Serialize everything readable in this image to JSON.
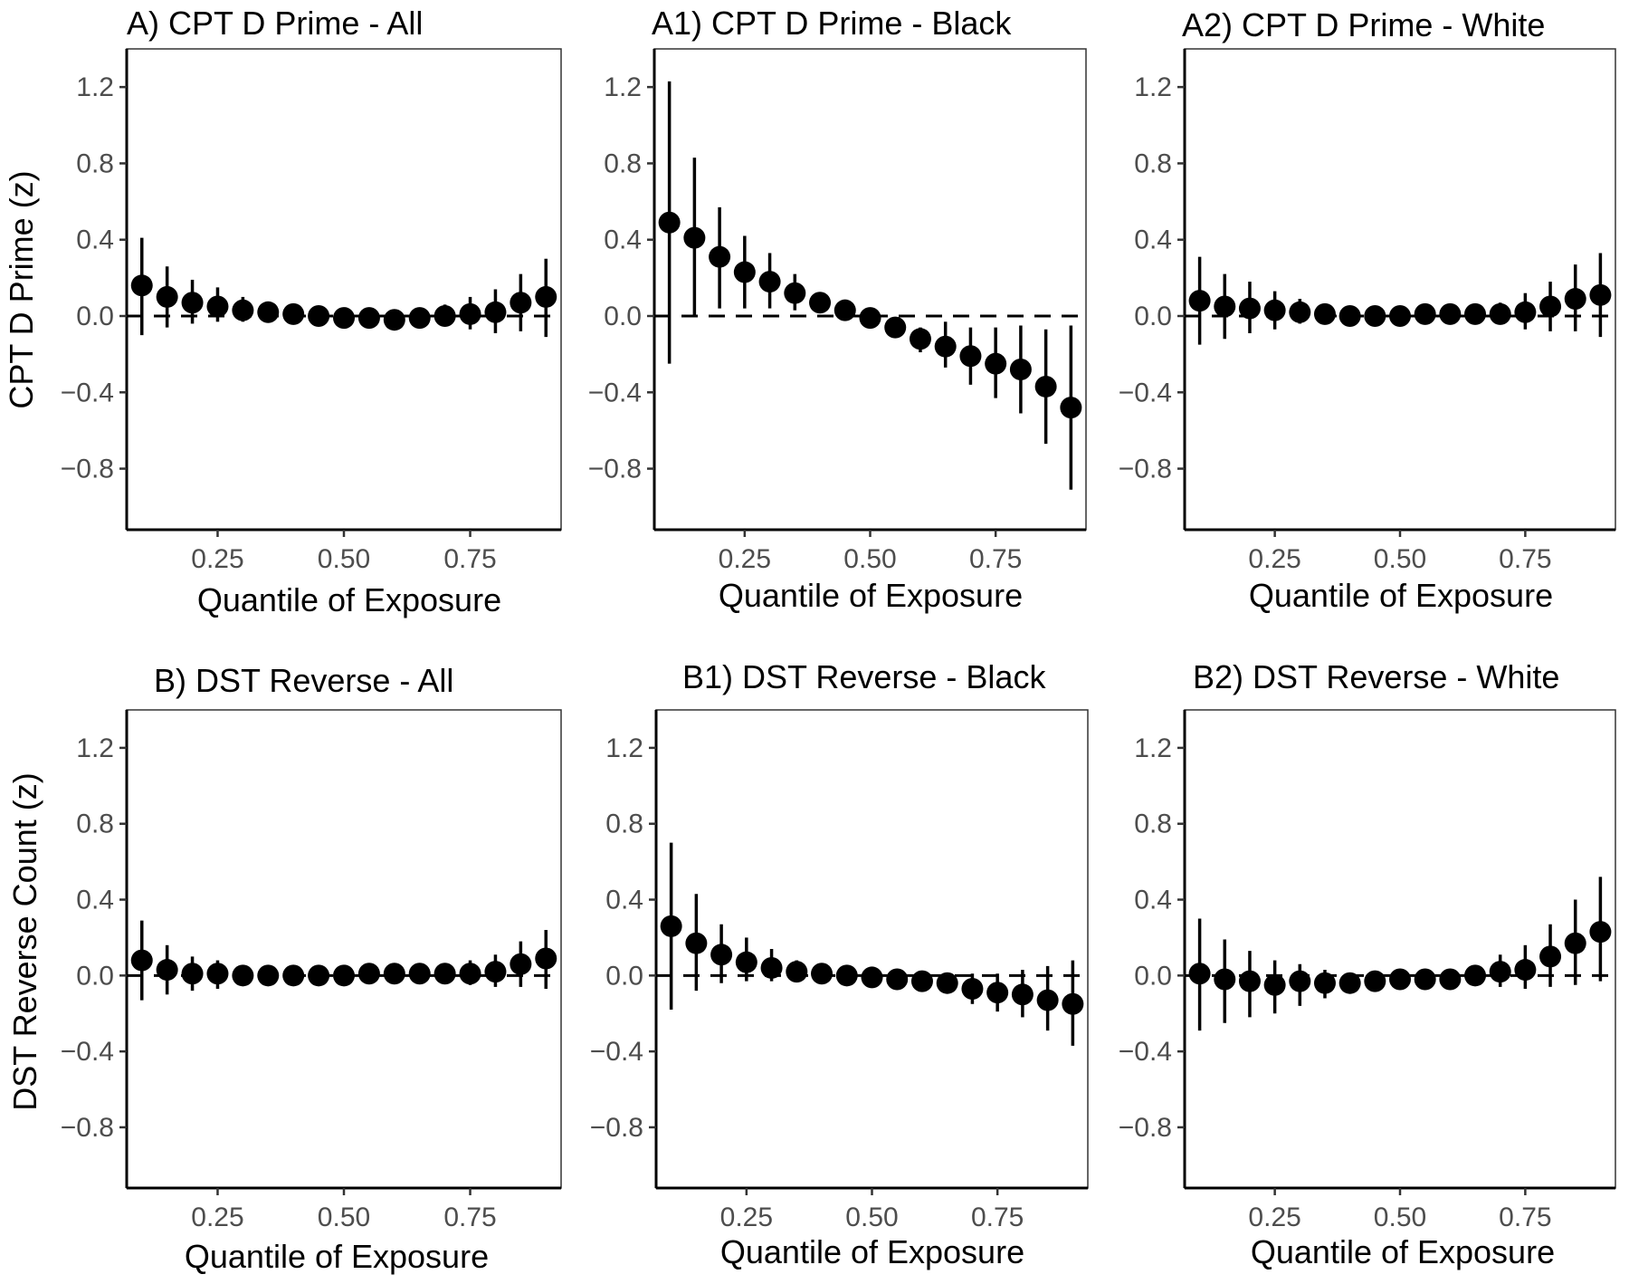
{
  "chart_data": [
    {
      "type": "scatter",
      "title": "A) CPT D Prime - All",
      "xlabel": "Quantile of Exposure",
      "ylabel": "CPT D Prime (z)",
      "xticks": [
        "0.25",
        "0.50",
        "0.75"
      ],
      "yticks": [
        "1.2",
        "0.8",
        "0.4",
        "0.0",
        "−0.4",
        "−0.8"
      ],
      "xlim": [
        0.07,
        0.93
      ],
      "ylim": [
        -1.12,
        1.4
      ],
      "reference_line": 0,
      "x": [
        0.1,
        0.15,
        0.2,
        0.25,
        0.3,
        0.35,
        0.4,
        0.45,
        0.5,
        0.55,
        0.6,
        0.65,
        0.7,
        0.75,
        0.8,
        0.85,
        0.9
      ],
      "y": [
        0.16,
        0.1,
        0.07,
        0.05,
        0.03,
        0.02,
        0.01,
        0.0,
        -0.01,
        -0.01,
        -0.02,
        -0.01,
        0.0,
        0.01,
        0.02,
        0.07,
        0.1
      ],
      "lower": [
        -0.1,
        -0.06,
        -0.04,
        -0.03,
        -0.03,
        0.01,
        0.0,
        0.0,
        -0.01,
        -0.01,
        -0.02,
        -0.02,
        -0.05,
        -0.07,
        -0.09,
        -0.08,
        -0.11
      ],
      "upper": [
        0.41,
        0.26,
        0.19,
        0.15,
        0.1,
        0.03,
        0.02,
        0.01,
        0.0,
        0.0,
        -0.01,
        0.0,
        0.06,
        0.1,
        0.14,
        0.22,
        0.3
      ]
    },
    {
      "type": "scatter",
      "title": "A1) CPT D Prime - Black",
      "xlabel": "Quantile of Exposure",
      "ylabel": "",
      "xticks": [
        "0.25",
        "0.50",
        "0.75"
      ],
      "yticks": [
        "1.2",
        "0.8",
        "0.4",
        "0.0",
        "−0.4",
        "−0.8"
      ],
      "xlim": [
        0.07,
        0.93
      ],
      "ylim": [
        -1.12,
        1.4
      ],
      "reference_line": 0,
      "x": [
        0.1,
        0.15,
        0.2,
        0.25,
        0.3,
        0.35,
        0.4,
        0.45,
        0.5,
        0.55,
        0.6,
        0.65,
        0.7,
        0.75,
        0.8,
        0.85,
        0.9
      ],
      "y": [
        0.49,
        0.41,
        0.31,
        0.23,
        0.18,
        0.12,
        0.07,
        0.03,
        -0.01,
        -0.06,
        -0.12,
        -0.16,
        -0.21,
        -0.25,
        -0.28,
        -0.37,
        -0.48
      ],
      "lower": [
        -0.25,
        0.0,
        0.04,
        0.04,
        0.04,
        0.03,
        0.05,
        0.02,
        -0.01,
        -0.06,
        -0.19,
        -0.27,
        -0.36,
        -0.43,
        -0.51,
        -0.67,
        -0.91
      ],
      "upper": [
        1.23,
        0.83,
        0.57,
        0.42,
        0.33,
        0.22,
        0.11,
        0.03,
        -0.01,
        -0.06,
        -0.06,
        -0.03,
        -0.06,
        -0.06,
        -0.05,
        -0.07,
        -0.05
      ]
    },
    {
      "type": "scatter",
      "title": "A2) CPT D Prime - White",
      "xlabel": "Quantile of Exposure",
      "ylabel": "",
      "xticks": [
        "0.25",
        "0.50",
        "0.75"
      ],
      "yticks": [
        "1.2",
        "0.8",
        "0.4",
        "0.0",
        "−0.4",
        "−0.8"
      ],
      "xlim": [
        0.07,
        0.93
      ],
      "ylim": [
        -1.12,
        1.4
      ],
      "reference_line": 0,
      "x": [
        0.1,
        0.15,
        0.2,
        0.25,
        0.3,
        0.35,
        0.4,
        0.45,
        0.5,
        0.55,
        0.6,
        0.65,
        0.7,
        0.75,
        0.8,
        0.85,
        0.9
      ],
      "y": [
        0.08,
        0.05,
        0.04,
        0.03,
        0.02,
        0.01,
        0.0,
        0.0,
        0.0,
        0.01,
        0.01,
        0.01,
        0.01,
        0.02,
        0.05,
        0.09,
        0.11
      ],
      "lower": [
        -0.15,
        -0.12,
        -0.09,
        -0.07,
        -0.04,
        -0.01,
        0.0,
        0.0,
        0.0,
        0.0,
        0.0,
        0.0,
        -0.04,
        -0.07,
        -0.08,
        -0.08,
        -0.11
      ],
      "upper": [
        0.31,
        0.22,
        0.18,
        0.13,
        0.09,
        0.03,
        0.01,
        0.0,
        0.0,
        0.01,
        0.02,
        0.02,
        0.07,
        0.12,
        0.18,
        0.27,
        0.33
      ]
    },
    {
      "type": "scatter",
      "title": "B) DST Reverse - All",
      "xlabel": "Quantile of Exposure",
      "ylabel": "DST Reverse Count (z)",
      "xticks": [
        "0.25",
        "0.50",
        "0.75"
      ],
      "yticks": [
        "1.2",
        "0.8",
        "0.4",
        "0.0",
        "−0.4",
        "−0.8"
      ],
      "xlim": [
        0.07,
        0.93
      ],
      "ylim": [
        -1.12,
        1.4
      ],
      "reference_line": 0,
      "x": [
        0.1,
        0.15,
        0.2,
        0.25,
        0.3,
        0.35,
        0.4,
        0.45,
        0.5,
        0.55,
        0.6,
        0.65,
        0.7,
        0.75,
        0.8,
        0.85,
        0.9
      ],
      "y": [
        0.08,
        0.03,
        0.01,
        0.01,
        0.0,
        0.0,
        0.0,
        0.0,
        0.0,
        0.01,
        0.01,
        0.01,
        0.01,
        0.01,
        0.02,
        0.06,
        0.09
      ],
      "lower": [
        -0.13,
        -0.1,
        -0.08,
        -0.07,
        -0.04,
        -0.01,
        -0.01,
        0.0,
        0.0,
        0.0,
        0.0,
        0.0,
        -0.04,
        -0.05,
        -0.06,
        -0.06,
        -0.07
      ],
      "upper": [
        0.29,
        0.16,
        0.1,
        0.08,
        0.04,
        0.01,
        0.01,
        0.0,
        0.01,
        0.02,
        0.02,
        0.02,
        0.06,
        0.08,
        0.11,
        0.18,
        0.24
      ]
    },
    {
      "type": "scatter",
      "title": "B1) DST Reverse - Black",
      "xlabel": "Quantile of Exposure",
      "ylabel": "",
      "xticks": [
        "0.25",
        "0.50",
        "0.75"
      ],
      "yticks": [
        "1.2",
        "0.8",
        "0.4",
        "0.0",
        "−0.4",
        "−0.8"
      ],
      "xlim": [
        0.07,
        0.93
      ],
      "ylim": [
        -1.12,
        1.4
      ],
      "reference_line": 0,
      "x": [
        0.1,
        0.15,
        0.2,
        0.25,
        0.3,
        0.35,
        0.4,
        0.45,
        0.5,
        0.55,
        0.6,
        0.65,
        0.7,
        0.75,
        0.8,
        0.85,
        0.9
      ],
      "y": [
        0.26,
        0.17,
        0.11,
        0.07,
        0.04,
        0.02,
        0.01,
        0.0,
        -0.01,
        -0.02,
        -0.03,
        -0.04,
        -0.07,
        -0.09,
        -0.1,
        -0.13,
        -0.15
      ],
      "lower": [
        -0.18,
        -0.08,
        -0.04,
        -0.03,
        -0.03,
        0.0,
        0.0,
        0.0,
        -0.01,
        -0.02,
        -0.03,
        -0.06,
        -0.15,
        -0.19,
        -0.22,
        -0.29,
        -0.37
      ],
      "upper": [
        0.7,
        0.43,
        0.27,
        0.2,
        0.14,
        0.08,
        0.04,
        0.01,
        0.0,
        -0.01,
        -0.02,
        0.01,
        0.01,
        0.01,
        0.03,
        0.05,
        0.08
      ]
    },
    {
      "type": "scatter",
      "title": "B2) DST Reverse - White",
      "xlabel": "Quantile of Exposure",
      "ylabel": "",
      "xticks": [
        "0.25",
        "0.50",
        "0.75"
      ],
      "yticks": [
        "1.2",
        "0.8",
        "0.4",
        "0.0",
        "−0.4",
        "−0.8"
      ],
      "xlim": [
        0.07,
        0.93
      ],
      "ylim": [
        -1.12,
        1.4
      ],
      "reference_line": 0,
      "x": [
        0.1,
        0.15,
        0.2,
        0.25,
        0.3,
        0.35,
        0.4,
        0.45,
        0.5,
        0.55,
        0.6,
        0.65,
        0.7,
        0.75,
        0.8,
        0.85,
        0.9
      ],
      "y": [
        0.01,
        -0.02,
        -0.03,
        -0.05,
        -0.03,
        -0.04,
        -0.04,
        -0.03,
        -0.02,
        -0.02,
        -0.02,
        0.0,
        0.02,
        0.03,
        0.1,
        0.17,
        0.23
      ],
      "lower": [
        -0.29,
        -0.25,
        -0.22,
        -0.2,
        -0.16,
        -0.12,
        -0.04,
        -0.03,
        -0.02,
        -0.02,
        -0.02,
        -0.04,
        -0.06,
        -0.07,
        -0.06,
        -0.05,
        -0.03
      ],
      "upper": [
        0.3,
        0.19,
        0.13,
        0.08,
        0.06,
        0.03,
        -0.04,
        -0.03,
        -0.02,
        -0.02,
        -0.02,
        0.03,
        0.11,
        0.16,
        0.27,
        0.4,
        0.52
      ]
    }
  ]
}
